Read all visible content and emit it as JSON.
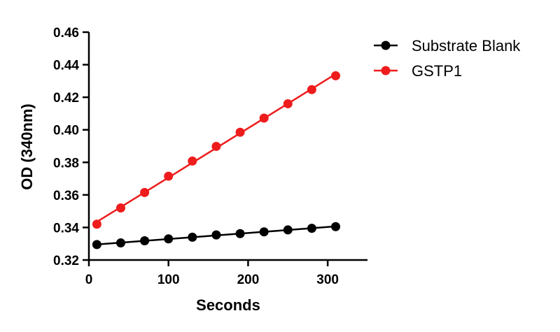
{
  "chart_data": {
    "type": "line",
    "title": "",
    "xlabel": "Seconds",
    "ylabel": "OD (340nm)",
    "xlim": [
      0,
      350
    ],
    "ylim": [
      0.32,
      0.46
    ],
    "xticks": [
      0,
      100,
      200,
      300
    ],
    "xtick_labels": [
      "0",
      "100",
      "200",
      "300"
    ],
    "yticks": [
      0.32,
      0.34,
      0.36,
      0.38,
      0.4,
      0.42,
      0.44,
      0.46
    ],
    "ytick_labels": [
      "0.32",
      "0.34",
      "0.36",
      "0.38",
      "0.40",
      "0.42",
      "0.44",
      "0.46"
    ],
    "grid": false,
    "legend": "top-right",
    "x": [
      10,
      40,
      70,
      100,
      130,
      160,
      190,
      220,
      250,
      280,
      310
    ],
    "series": [
      {
        "name": "Substrate Blank",
        "color": "#000000",
        "values": [
          0.3295,
          0.3305,
          0.3318,
          0.333,
          0.334,
          0.3354,
          0.3362,
          0.3373,
          0.3385,
          0.3395,
          0.3405
        ]
      },
      {
        "name": "GSTP1",
        "color": "#ee1c1c",
        "values": [
          0.342,
          0.352,
          0.3615,
          0.3715,
          0.3808,
          0.3898,
          0.3985,
          0.4072,
          0.416,
          0.4247,
          0.4332
        ]
      }
    ]
  }
}
